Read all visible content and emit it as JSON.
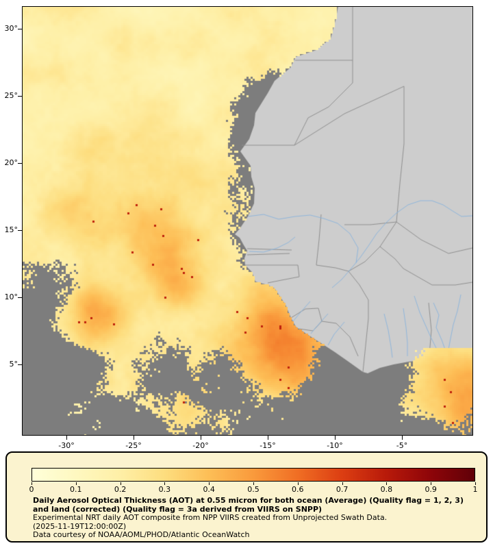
{
  "map": {
    "colors": {
      "no_data_gray": "#7d7d7d",
      "land_gray": "#cdcdcd",
      "country_border": "#8f8f8f",
      "river_blue": "#8fb6dc",
      "frame": "#000000"
    },
    "lat_ticks": [
      {
        "value": 30,
        "label": "30°"
      },
      {
        "value": 25,
        "label": "25°"
      },
      {
        "value": 20,
        "label": "20°"
      },
      {
        "value": 15,
        "label": "15°"
      },
      {
        "value": 10,
        "label": "10°"
      },
      {
        "value": 5,
        "label": "5°"
      }
    ],
    "lon_ticks": [
      {
        "value": -30,
        "label": "-30°"
      },
      {
        "value": -25,
        "label": "-25°"
      },
      {
        "value": -20,
        "label": "-20°"
      },
      {
        "value": -15,
        "label": "-15°"
      },
      {
        "value": -10,
        "label": "-10°"
      },
      {
        "value": -5,
        "label": "-5°"
      }
    ]
  },
  "legend": {
    "background": "#fbf3cf",
    "border_color": "#000000",
    "colorbar": {
      "min": 0,
      "max": 1,
      "tick_labels": [
        "0",
        "0.1",
        "0.2",
        "0.3",
        "0.4",
        "0.5",
        "0.6",
        "0.7",
        "0.8",
        "0.9",
        "1"
      ],
      "stops": [
        "#ffffd9",
        "#fef8c0",
        "#feefa6",
        "#fddd7e",
        "#fdbe56",
        "#f99a3c",
        "#f06e24",
        "#dc3e12",
        "#b81a0a",
        "#8e0509",
        "#600008"
      ]
    },
    "title_bold": "Daily Aerosol Optical Thickness (AOT) at 0.55 micron for both ocean (Average) (Quality flag = 1, 2, 3) and land (corrected) (Quality flag = 3a derived from VIIRS on SNPP)",
    "line2": "Experimental NRT daily AOT composite from NPP VIIRS created from Unprojected Swath Data.",
    "line3": "(2025-11-19T12:00:00Z)",
    "line4": "Data courtesy of NOAA/AOML/PHOD/Atlantic OceanWatch"
  },
  "chart_data": {
    "type": "heatmap",
    "title": "Daily Aerosol Optical Thickness (AOT) at 0.55 micron",
    "colorbar_tick_values": [
      0,
      0.1,
      0.2,
      0.3,
      0.4,
      0.5,
      0.6,
      0.7,
      0.8,
      0.9,
      1
    ],
    "value_range": [
      0,
      1
    ],
    "x_axis_ticks_deg_lon": [
      -30,
      -25,
      -20,
      -15,
      -10,
      -5
    ],
    "y_axis_ticks_deg_lat": [
      30,
      25,
      20,
      15,
      10,
      5
    ],
    "no_data_color": "#7d7d7d",
    "land_color": "#cdcdcd"
  }
}
